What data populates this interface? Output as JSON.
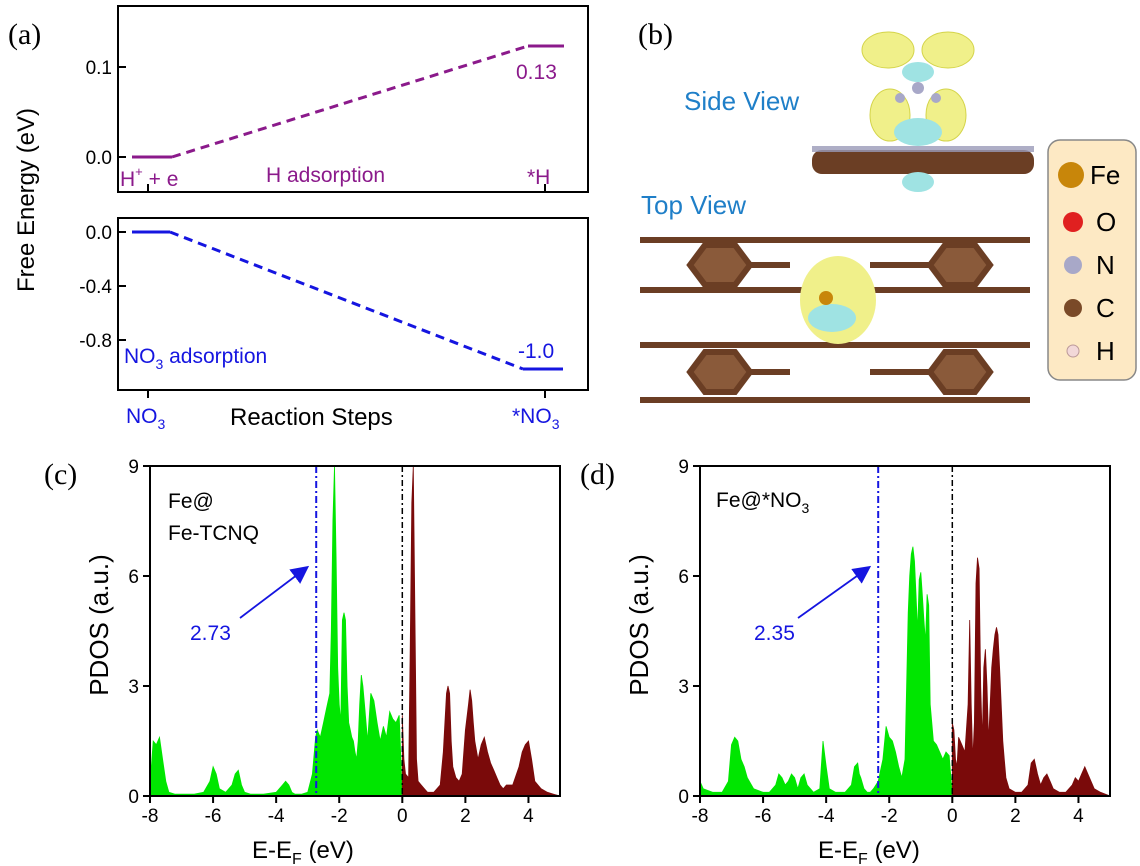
{
  "panels": {
    "a": "(a)",
    "b": "(b)",
    "c": "(c)",
    "d": "(d)"
  },
  "chart_data": [
    {
      "panel": "a-top",
      "type": "line",
      "style": "dashed",
      "color": "#8b1a8b",
      "x": [
        0,
        1
      ],
      "y": [
        0.0,
        0.13
      ],
      "ylim": [
        -0.05,
        0.15
      ],
      "yticks": [
        0.0,
        0.1
      ],
      "start_label": "H",
      "start_sup": "+",
      "start_tail": " + e",
      "end_label": "*H",
      "reaction_label": "H adsorption",
      "value_label": "0.13"
    },
    {
      "panel": "a-bottom",
      "type": "line",
      "style": "dashed",
      "color": "#1515e0",
      "x": [
        0,
        1
      ],
      "y": [
        0.0,
        -1.0
      ],
      "ylim": [
        -1.1,
        0.1
      ],
      "yticks": [
        0.0,
        -0.4,
        -0.8
      ],
      "start_label": "NO",
      "start_sub": "3",
      "end_label": "*NO",
      "end_sub": "3",
      "reaction_label": "NO",
      "reaction_sub": "3",
      "reaction_tail": " adsorption",
      "value_label": "-1.0",
      "xlabel": "Reaction Steps",
      "ylabel": "Free Energy (eV)"
    },
    {
      "panel": "c",
      "type": "area",
      "xlim": [
        -8,
        5
      ],
      "ylim": [
        0,
        9
      ],
      "xticks": [
        -8,
        -6,
        -4,
        -2,
        0,
        2,
        4
      ],
      "yticks": [
        0,
        3,
        6,
        9
      ],
      "xlabel": "E-E",
      "xlabel_sub": "F",
      "xlabel_tail": " (eV)",
      "ylabel": "PDOS (a.u.)",
      "label_line1": "Fe@",
      "label_line2": "Fe-TCNQ",
      "center_label": "2.73",
      "d_band_center": -2.73,
      "fermi": 0,
      "occupied_color": "#00e600",
      "unoccupied_color": "#7a0a0a",
      "series": [
        {
          "part": "occupied",
          "x": [
            -8,
            -7.9,
            -7.8,
            -7.7,
            -7.6,
            -7.5,
            -7.4,
            -7.2,
            -7,
            -6.6,
            -6.3,
            -6.1,
            -6.0,
            -5.9,
            -5.8,
            -5.6,
            -5.4,
            -5.3,
            -5.2,
            -5.1,
            -5.0,
            -4.8,
            -4.4,
            -4.0,
            -3.8,
            -3.7,
            -3.6,
            -3.5,
            -3.4,
            -3.2,
            -3.0,
            -2.85,
            -2.75,
            -2.7,
            -2.6,
            -2.5,
            -2.4,
            -2.3,
            -2.25,
            -2.2,
            -2.15,
            -2.1,
            -2.05,
            -2.0,
            -1.95,
            -1.9,
            -1.85,
            -1.8,
            -1.75,
            -1.7,
            -1.65,
            -1.6,
            -1.55,
            -1.5,
            -1.45,
            -1.4,
            -1.35,
            -1.3,
            -1.25,
            -1.2,
            -1.1,
            -1.0,
            -0.9,
            -0.8,
            -0.7,
            -0.6,
            -0.5,
            -0.4,
            -0.3,
            -0.2,
            -0.1,
            0
          ],
          "y": [
            0.3,
            1.5,
            1.4,
            1.6,
            1.0,
            0.4,
            0.1,
            0.05,
            0.05,
            0.05,
            0.1,
            0.4,
            0.8,
            0.6,
            0.2,
            0.1,
            0.3,
            0.6,
            0.7,
            0.3,
            0.1,
            0.05,
            0.05,
            0.1,
            0.3,
            0.4,
            0.3,
            0.1,
            0.05,
            0.05,
            0.1,
            0.6,
            1.6,
            1.8,
            1.6,
            2.0,
            2.4,
            2.8,
            4.5,
            7.5,
            9.0,
            6.5,
            3.5,
            2.5,
            2.0,
            4.8,
            5.0,
            4.8,
            3.0,
            2.0,
            1.8,
            1.6,
            1.5,
            1.2,
            1.0,
            1.5,
            2.5,
            3.3,
            3.0,
            2.5,
            1.5,
            2.8,
            2.6,
            2.0,
            1.5,
            1.9,
            1.6,
            2.3,
            2.1,
            2.0,
            2.2,
            0
          ]
        },
        {
          "part": "unoccupied",
          "x": [
            0,
            0.05,
            0.1,
            0.2,
            0.25,
            0.3,
            0.35,
            0.4,
            0.45,
            0.5,
            0.6,
            0.7,
            0.8,
            0.9,
            1.0,
            1.2,
            1.3,
            1.4,
            1.45,
            1.5,
            1.55,
            1.6,
            1.7,
            1.8,
            1.9,
            2.0,
            2.1,
            2.15,
            2.2,
            2.25,
            2.3,
            2.4,
            2.5,
            2.6,
            2.7,
            2.8,
            2.9,
            3.0,
            3.1,
            3.2,
            3.3,
            3.5,
            3.7,
            3.8,
            3.9,
            4.0,
            4.1,
            4.2,
            4.4,
            4.6,
            4.8,
            5.0
          ],
          "y": [
            2.2,
            1.0,
            0.6,
            0.5,
            4.0,
            8.0,
            9.0,
            5.0,
            1.0,
            0.4,
            0.3,
            0.2,
            0.1,
            0.1,
            0.1,
            0.3,
            1.2,
            2.8,
            3.0,
            2.8,
            1.5,
            0.8,
            0.5,
            0.4,
            0.6,
            1.8,
            2.5,
            2.9,
            2.6,
            2.0,
            1.5,
            1.0,
            1.4,
            1.6,
            1.2,
            0.9,
            0.7,
            0.5,
            0.3,
            0.2,
            0.3,
            0.3,
            0.8,
            1.2,
            1.4,
            1.5,
            1.0,
            0.4,
            0.2,
            0.1,
            0.05,
            0
          ]
        }
      ]
    },
    {
      "panel": "d",
      "type": "area",
      "xlim": [
        -8,
        5
      ],
      "ylim": [
        0,
        9
      ],
      "xticks": [
        -8,
        -6,
        -4,
        -2,
        0,
        2,
        4
      ],
      "yticks": [
        0,
        3,
        6,
        9
      ],
      "xlabel": "E-E",
      "xlabel_sub": "F",
      "xlabel_tail": " (eV)",
      "ylabel": "PDOS (a.u.)",
      "label_line1": "Fe@*NO",
      "label_sub": "3",
      "center_label": "2.35",
      "d_band_center": -2.35,
      "fermi": 0,
      "occupied_color": "#00e600",
      "unoccupied_color": "#7a0a0a",
      "series": [
        {
          "part": "occupied",
          "x": [
            -8,
            -7.9,
            -7.6,
            -7.3,
            -7.1,
            -7.0,
            -6.9,
            -6.8,
            -6.7,
            -6.6,
            -6.5,
            -6.3,
            -6.0,
            -5.8,
            -5.6,
            -5.5,
            -5.4,
            -5.3,
            -5.2,
            -5.1,
            -5.0,
            -4.9,
            -4.8,
            -4.7,
            -4.6,
            -4.4,
            -4.2,
            -4.1,
            -4.0,
            -3.9,
            -3.7,
            -3.4,
            -3.2,
            -3.1,
            -3.0,
            -2.95,
            -2.9,
            -2.8,
            -2.7,
            -2.6,
            -2.5,
            -2.35,
            -2.2,
            -2.1,
            -2.0,
            -1.9,
            -1.8,
            -1.7,
            -1.6,
            -1.5,
            -1.45,
            -1.4,
            -1.35,
            -1.3,
            -1.25,
            -1.2,
            -1.15,
            -1.1,
            -1.05,
            -1.0,
            -0.95,
            -0.9,
            -0.85,
            -0.8,
            -0.75,
            -0.7,
            -0.6,
            -0.5,
            -0.4,
            -0.3,
            -0.2,
            -0.1,
            0
          ],
          "y": [
            0.4,
            0.2,
            0.1,
            0.1,
            0.4,
            1.4,
            1.6,
            1.5,
            1.0,
            0.8,
            0.5,
            0.2,
            0.1,
            0.1,
            0.3,
            0.6,
            0.5,
            0.3,
            0.4,
            0.6,
            0.5,
            0.2,
            0.5,
            0.6,
            0.3,
            0.1,
            0.2,
            1.5,
            0.8,
            0.2,
            0.1,
            0.1,
            0.3,
            0.8,
            0.9,
            0.6,
            0.5,
            0.2,
            0.1,
            0.1,
            0.2,
            0.4,
            1.0,
            1.9,
            1.6,
            1.5,
            1.2,
            0.8,
            0.5,
            1.0,
            3.0,
            5.0,
            6.0,
            6.6,
            6.8,
            6.4,
            5.5,
            4.5,
            5.9,
            6.1,
            5.5,
            4.8,
            4.2,
            5.5,
            5.2,
            2.5,
            1.5,
            1.4,
            1.2,
            1.0,
            1.2,
            1.1,
            0
          ]
        },
        {
          "part": "unoccupied",
          "x": [
            0,
            0.05,
            0.1,
            0.15,
            0.2,
            0.3,
            0.4,
            0.5,
            0.55,
            0.6,
            0.65,
            0.7,
            0.75,
            0.8,
            0.85,
            0.9,
            0.95,
            1.0,
            1.05,
            1.1,
            1.15,
            1.2,
            1.25,
            1.3,
            1.35,
            1.4,
            1.45,
            1.5,
            1.55,
            1.6,
            1.65,
            1.7,
            1.8,
            2.0,
            2.2,
            2.4,
            2.5,
            2.6,
            2.7,
            2.8,
            2.9,
            3.0,
            3.1,
            3.2,
            3.4,
            3.6,
            3.8,
            3.9,
            4.0,
            4.1,
            4.2,
            4.3,
            4.5,
            4.7,
            5.0
          ],
          "y": [
            2.0,
            1.8,
            1.0,
            0.8,
            1.6,
            1.4,
            1.2,
            2.5,
            4.8,
            2.5,
            1.0,
            2.0,
            5.8,
            6.5,
            6.2,
            3.0,
            1.5,
            3.5,
            4.0,
            3.0,
            1.5,
            2.5,
            3.5,
            4.0,
            4.4,
            4.6,
            4.4,
            3.5,
            2.5,
            1.5,
            1.0,
            0.5,
            0.2,
            0.1,
            0.1,
            0.3,
            0.9,
            1.0,
            0.6,
            0.3,
            0.5,
            0.6,
            0.4,
            0.2,
            0.1,
            0.1,
            0.3,
            0.5,
            0.4,
            0.6,
            0.8,
            0.6,
            0.2,
            0.1,
            0
          ]
        }
      ]
    }
  ],
  "structure": {
    "side_view": "Side View",
    "top_view": "Top View",
    "legend": [
      {
        "label": "Fe",
        "color": "#c8860a"
      },
      {
        "label": "O",
        "color": "#e02020"
      },
      {
        "label": "N",
        "color": "#a8a8c8"
      },
      {
        "label": "C",
        "color": "#7a4a28"
      },
      {
        "label": "H",
        "color": "#f2d8d8"
      }
    ],
    "view_color": "#1f7fc8",
    "legend_bg": "#fde9c4"
  }
}
